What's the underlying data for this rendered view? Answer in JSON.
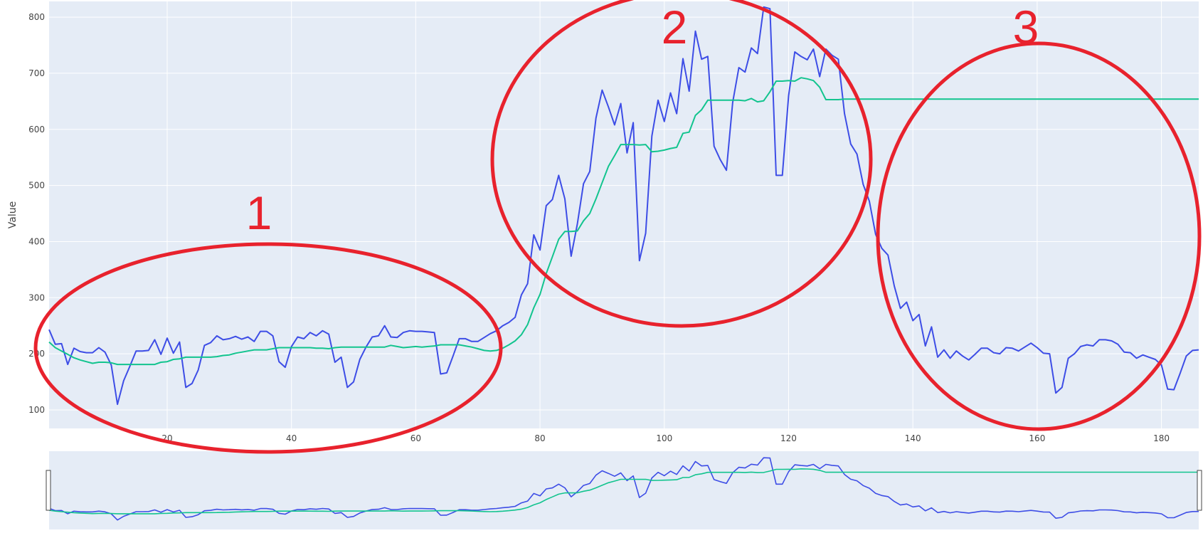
{
  "chart_data": {
    "type": "line",
    "ylabel": "Value",
    "xlim": [
      1,
      186
    ],
    "ylim": [
      67,
      828
    ],
    "x_ticks": [
      20,
      40,
      60,
      80,
      100,
      120,
      140,
      160,
      180
    ],
    "y_ticks": [
      100,
      200,
      300,
      400,
      500,
      600,
      700,
      800
    ],
    "grid": true,
    "colors": {
      "plot_bg": "#e5ecf6",
      "grid": "#ffffff",
      "series_raw": "#3d4de6",
      "series_smooth": "#12c48e",
      "annotation": "#e8222d",
      "rangeslider_border": "#444444"
    },
    "series": [
      {
        "key": "raw",
        "values": [
          243,
          217,
          218,
          181,
          210,
          204,
          202,
          202,
          211,
          203,
          180,
          110,
          152,
          178,
          205,
          205,
          206,
          225,
          199,
          228,
          201,
          221,
          140,
          147,
          171,
          215,
          220,
          232,
          225,
          227,
          231,
          226,
          230,
          222,
          240,
          240,
          232,
          186,
          176,
          213,
          230,
          227,
          238,
          232,
          241,
          235,
          185,
          194,
          140,
          150,
          190,
          212,
          230,
          232,
          250,
          230,
          229,
          238,
          241,
          240,
          240,
          239,
          238,
          164,
          166,
          196,
          227,
          227,
          222,
          222,
          229,
          236,
          241,
          250,
          256,
          265,
          305,
          325,
          412,
          385,
          464,
          475,
          518,
          476,
          374,
          431,
          503,
          525,
          620,
          670,
          640,
          608,
          646,
          558,
          612,
          366,
          415,
          588,
          652,
          614,
          665,
          628,
          726,
          668,
          775,
          725,
          730,
          570,
          546,
          527,
          648,
          710,
          702,
          745,
          735,
          818,
          815,
          518,
          518,
          660,
          738,
          730,
          724,
          743,
          694,
          743,
          732,
          725,
          628,
          574,
          556,
          502,
          472,
          413,
          388,
          376,
          321,
          281,
          292,
          259,
          270,
          214,
          248,
          194,
          207,
          192,
          205,
          196,
          189,
          199,
          210,
          210,
          202,
          200,
          211,
          210,
          205,
          212,
          219,
          211,
          201,
          200,
          130,
          140,
          192,
          200,
          213,
          216,
          214,
          225,
          225,
          223,
          217,
          203,
          202,
          192,
          198,
          194,
          190,
          180,
          137,
          136,
          165,
          196,
          206,
          207
        ]
      },
      {
        "key": "smooth",
        "values": [
          221,
          211,
          205,
          199,
          193,
          189,
          186,
          183,
          185,
          185,
          184,
          181,
          181,
          181,
          181,
          181,
          181,
          181,
          185,
          186,
          190,
          191,
          194,
          194,
          194,
          194,
          194,
          195,
          197,
          198,
          201,
          203,
          205,
          207,
          207,
          207,
          209,
          211,
          211,
          211,
          211,
          211,
          211,
          210,
          210,
          209,
          211,
          212,
          212,
          212,
          212,
          212,
          212,
          212,
          212,
          215,
          213,
          211,
          212,
          213,
          212,
          213,
          214,
          216,
          216,
          216,
          216,
          214,
          212,
          209,
          206,
          205,
          206,
          210,
          216,
          223,
          234,
          252,
          282,
          306,
          343,
          373,
          404,
          418,
          418,
          419,
          437,
          450,
          476,
          505,
          534,
          553,
          573,
          573,
          573,
          572,
          573,
          560,
          561,
          563,
          566,
          568,
          593,
          595,
          625,
          635,
          652,
          652,
          652,
          652,
          652,
          652,
          651,
          655,
          649,
          651,
          667,
          686,
          686,
          687,
          686,
          692,
          690,
          687,
          675,
          653,
          653,
          653,
          654,
          654,
          654,
          654,
          654,
          654,
          654,
          654,
          654,
          654,
          654,
          654,
          654,
          654,
          654,
          654,
          654,
          654,
          654,
          654,
          654,
          654,
          654,
          654,
          654,
          654,
          654,
          654,
          654,
          654,
          654,
          654,
          654,
          654,
          654,
          654,
          654,
          654,
          654,
          654,
          654,
          654,
          654,
          654,
          654,
          654,
          654,
          654,
          654,
          654,
          654,
          654,
          654,
          654,
          654,
          654,
          654,
          654
        ]
      }
    ],
    "annotations": [
      {
        "label": "1",
        "region": "left"
      },
      {
        "label": "2",
        "region": "center"
      },
      {
        "label": "3",
        "region": "right"
      }
    ]
  }
}
